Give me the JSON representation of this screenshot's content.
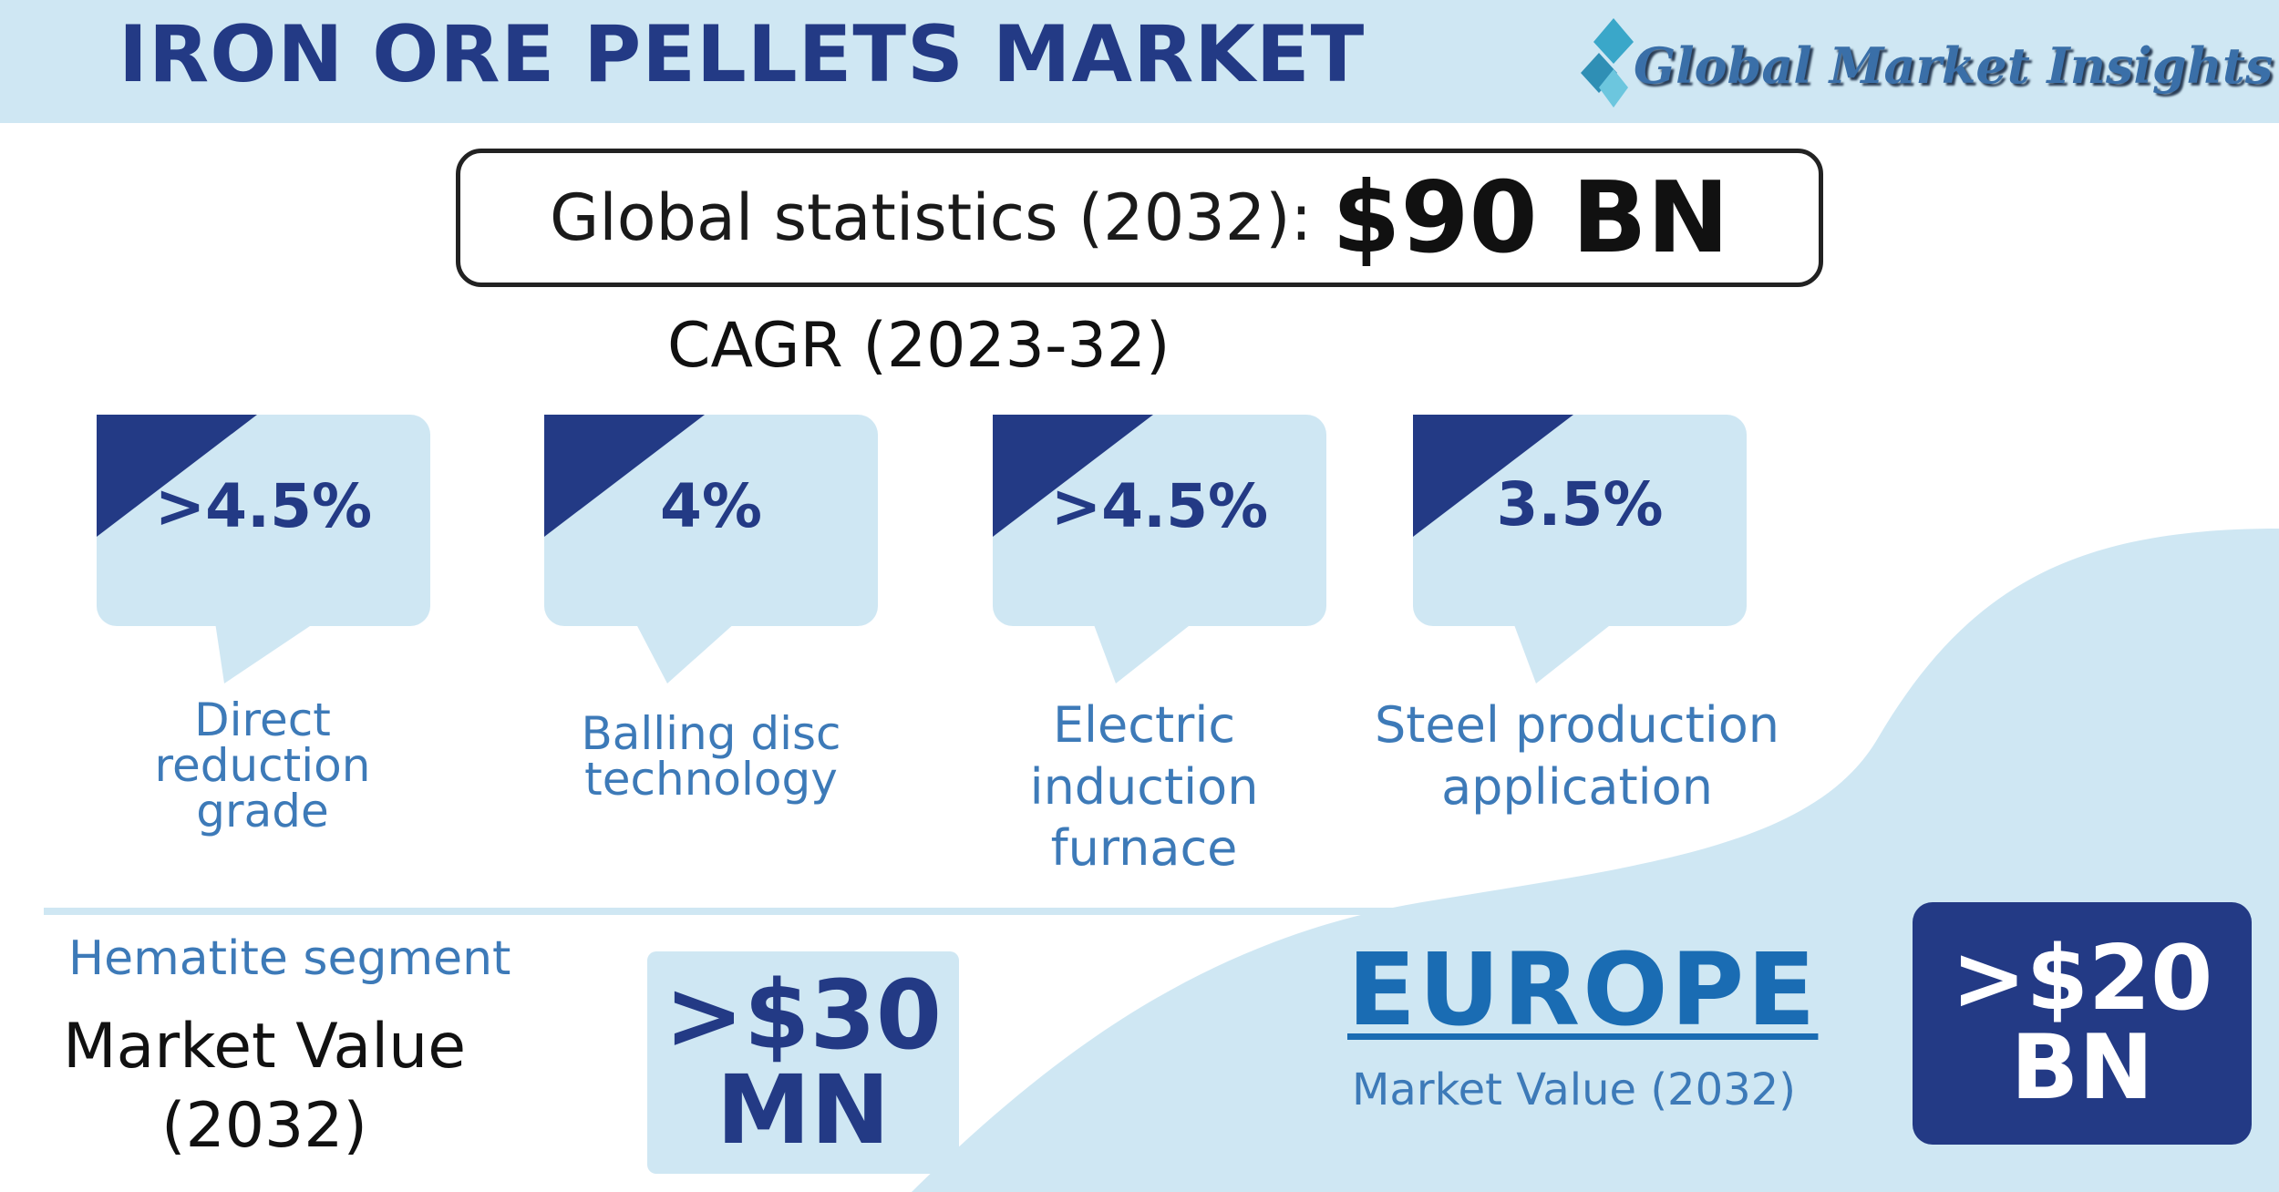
{
  "header": {
    "title": "IRON ORE PELLETS MARKET",
    "logo_text": "Global Market Insights"
  },
  "global_stats": {
    "label": "Global statistics (2032):",
    "value": "$90 BN"
  },
  "cagr": {
    "title": "CAGR (2023-32)",
    "items": [
      {
        "value": ">4.5%",
        "label_lines": [
          "Direct",
          "reduction",
          "grade"
        ]
      },
      {
        "value": "4%",
        "label_lines": [
          "Balling disc",
          "technology"
        ]
      },
      {
        "value": ">4.5%",
        "label_lines": [
          "Electric",
          "induction",
          "furnace"
        ]
      },
      {
        "value": "3.5%",
        "label_lines": [
          "Steel production",
          "application"
        ]
      }
    ]
  },
  "hematite": {
    "segment_label": "Hematite segment",
    "market_value_label_lines": [
      "Market Value",
      "(2032)"
    ],
    "value_lines": [
      ">$30",
      "MN"
    ]
  },
  "europe": {
    "region": "EUROPE",
    "market_value_label": "Market Value (2032)",
    "value_lines": [
      ">$20",
      "BN"
    ]
  },
  "colors": {
    "navy": "#233a85",
    "light_blue": "#cfe7f3",
    "label_blue": "#3d7ab8",
    "europe_blue": "#1a6cb3"
  }
}
